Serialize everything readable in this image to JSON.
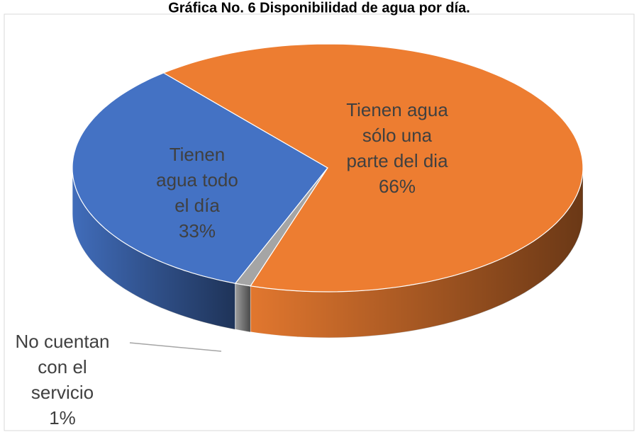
{
  "chart_data": {
    "type": "pie",
    "title": "Gráfica No. 6 Disponibilidad de agua por día.",
    "categories": [
      "Tienen agua todo el día",
      "Tienen agua sólo una parte del dia",
      "No cuentan con el servicio"
    ],
    "values": [
      33,
      66,
      1
    ],
    "value_labels": [
      "33%",
      "66%",
      "1%"
    ],
    "colors": [
      "#4472c4",
      "#ed7d31",
      "#a5a5a5"
    ]
  }
}
